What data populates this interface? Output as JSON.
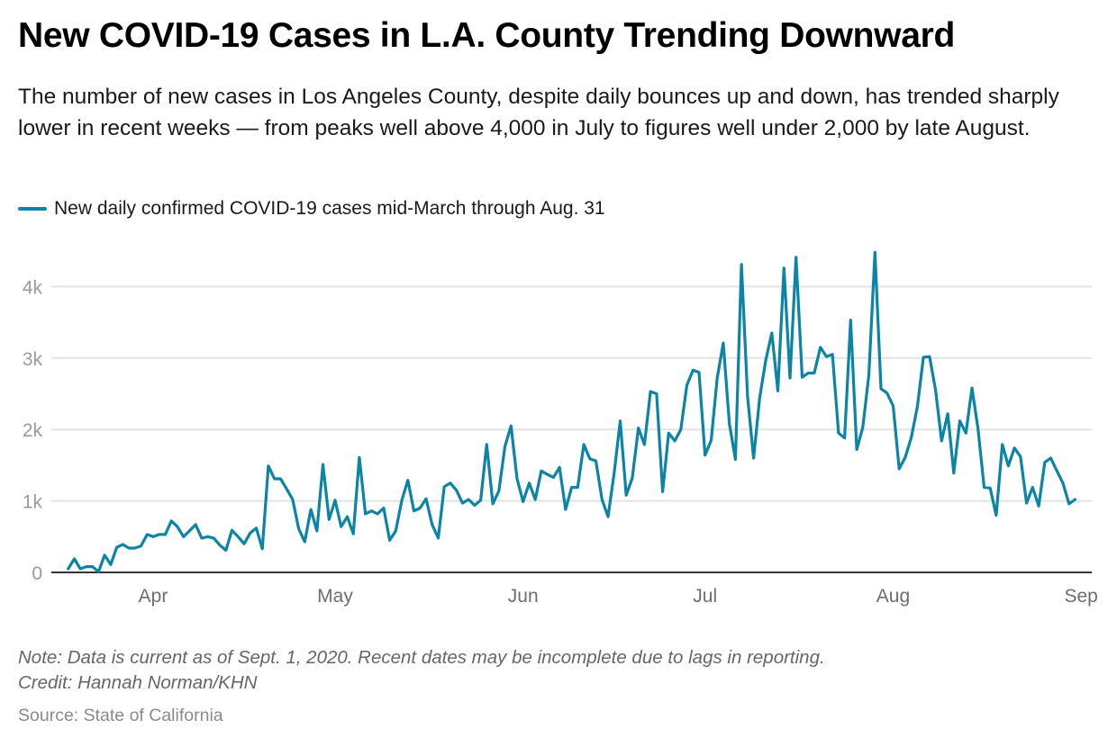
{
  "header": {
    "title": "New COVID-19 Cases in L.A. County Trending Downward",
    "subtitle": "The number of new cases in Los Angeles County, despite daily bounces up and down, has trended sharply lower in recent weeks — from peaks well above 4,000 in July to figures well under 2,000 by late August."
  },
  "legend": {
    "label": "New daily confirmed COVID-19 cases mid-March through Aug. 31",
    "color": "#0b84a5"
  },
  "footer": {
    "note": "Note: Data is current as of Sept. 1, 2020. Recent dates may be incomplete due to lags in reporting.",
    "credit": "Credit: Hannah Norman/KHN",
    "source": "Source: State of California"
  },
  "chart_data": {
    "type": "line",
    "title": "New COVID-19 Cases in L.A. County Trending Downward",
    "xlabel": "",
    "ylabel": "",
    "x_start": "2020-03-18",
    "x_end": "2020-08-31",
    "x_step": "1 day",
    "ylim": [
      0,
      4500
    ],
    "yticks": [
      0,
      1000,
      2000,
      3000,
      4000
    ],
    "ytick_labels": [
      "0",
      "1k",
      "2k",
      "3k",
      "4k"
    ],
    "xticks": [
      "2020-04-01",
      "2020-05-01",
      "2020-06-01",
      "2020-07-01",
      "2020-08-01",
      "2020-09-01"
    ],
    "xtick_labels": [
      "Apr",
      "May",
      "Jun",
      "Jul",
      "Aug",
      "Sep"
    ],
    "grid": true,
    "legend_position": "top-left",
    "series": [
      {
        "name": "New daily confirmed COVID-19 cases mid-March through Aug. 31",
        "color": "#0b84a5",
        "values": [
          50,
          190,
          50,
          80,
          80,
          10,
          240,
          110,
          350,
          390,
          340,
          340,
          370,
          530,
          500,
          530,
          530,
          720,
          640,
          500,
          580,
          670,
          480,
          500,
          480,
          380,
          310,
          590,
          500,
          400,
          550,
          620,
          330,
          1490,
          1310,
          1310,
          1170,
          1020,
          610,
          430,
          880,
          580,
          1510,
          740,
          1010,
          640,
          780,
          540,
          1610,
          820,
          860,
          820,
          900,
          450,
          580,
          1010,
          1290,
          860,
          900,
          1030,
          670,
          480,
          1200,
          1250,
          1150,
          970,
          1020,
          940,
          1010,
          1790,
          960,
          1140,
          1760,
          2050,
          1310,
          990,
          1250,
          1020,
          1420,
          1370,
          1330,
          1470,
          880,
          1190,
          1190,
          1790,
          1590,
          1560,
          1020,
          780,
          1380,
          2120,
          1080,
          1320,
          2020,
          1790,
          2530,
          2500,
          1130,
          1950,
          1840,
          2000,
          2620,
          2830,
          2800,
          1640,
          1850,
          2720,
          3210,
          2080,
          1580,
          4310,
          2460,
          1600,
          2440,
          2970,
          3350,
          2540,
          4260,
          2720,
          4410,
          2730,
          2790,
          2790,
          3150,
          3020,
          3050,
          1950,
          1880,
          3530,
          1720,
          2030,
          2760,
          4480,
          2570,
          2510,
          2330,
          1450,
          1610,
          1890,
          2320,
          3010,
          3020,
          2550,
          1840,
          2220,
          1390,
          2120,
          1950,
          2580,
          2010,
          1190,
          1180,
          800,
          1790,
          1490,
          1740,
          1620,
          970,
          1190,
          930,
          1540,
          1600,
          1420,
          1250,
          960,
          1020
        ]
      }
    ]
  }
}
